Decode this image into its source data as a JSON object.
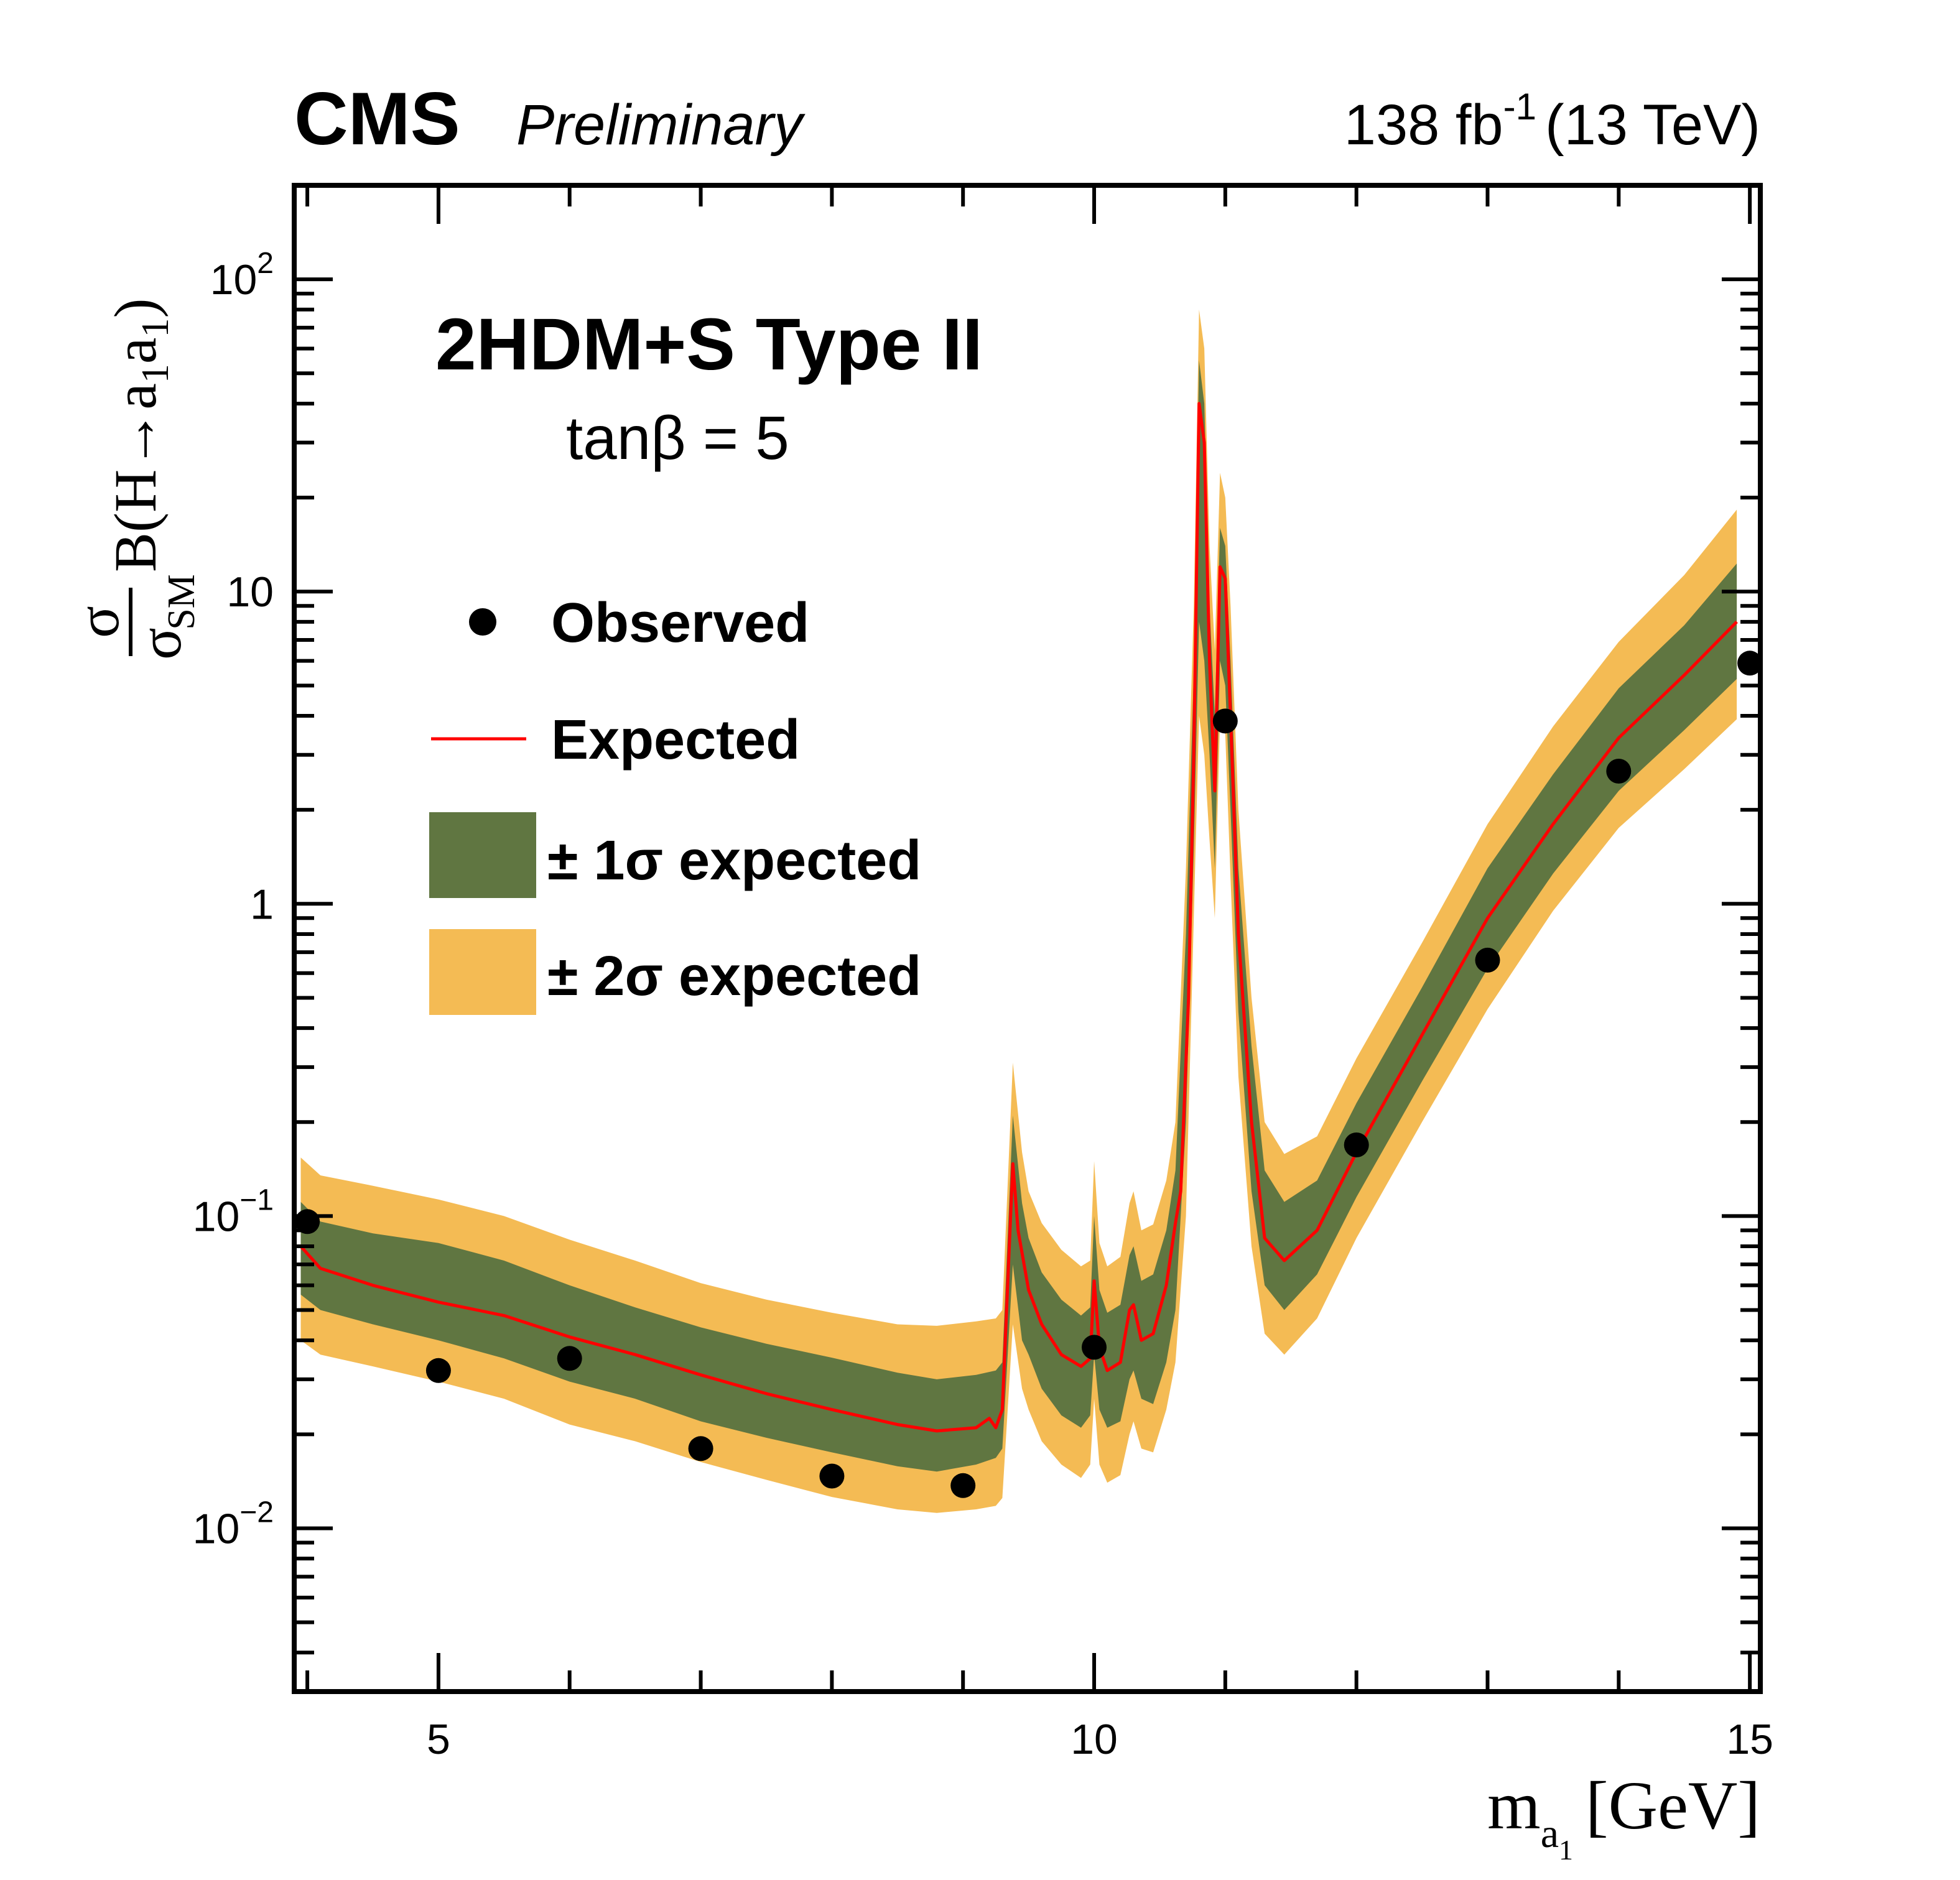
{
  "header": {
    "experiment": "CMS",
    "status": "Preliminary",
    "luminosity": "138 fb",
    "luminosity_exponent": "-1",
    "energy": "(13 TeV)"
  },
  "annotation": {
    "model": "2HDM+S Type II",
    "parameter": "tanβ = 5"
  },
  "legend": {
    "observed": "Observed",
    "expected": "Expected",
    "one_sigma": "± 1σ expected",
    "two_sigma": "± 2σ expected"
  },
  "colors": {
    "one_sigma_band": "#607641",
    "two_sigma_band": "#F4BB54",
    "expected_line": "#FF0000",
    "observed_marker": "#000000"
  },
  "chart_data": {
    "type": "line",
    "title": "",
    "xlabel": "m_a1 [GeV]",
    "ylabel": "σ/σ_SM B(H→a1a1)",
    "x_scale": "linear",
    "y_scale": "log",
    "xlim": [
      3.9,
      15.08
    ],
    "ylim": [
      0.003,
      200
    ],
    "x_ticks": [
      5,
      10,
      15
    ],
    "x_tick_labels": [
      "5",
      "10",
      "15"
    ],
    "y_ticks": [
      0.01,
      0.1,
      1,
      10,
      100
    ],
    "y_tick_labels": [
      {
        "base": "10",
        "exp": "−2"
      },
      {
        "base": "10",
        "exp": "−1"
      },
      {
        "base": "1",
        "exp": ""
      },
      {
        "base": "10",
        "exp": ""
      },
      {
        "base": "10",
        "exp": "2"
      }
    ],
    "legend_position": "top-left",
    "series": [
      {
        "name": "Observed",
        "kind": "markers",
        "x": [
          4.0,
          5.0,
          6.0,
          7.0,
          8.0,
          9.0,
          10.0,
          11.0,
          12.0,
          13.0,
          14.0,
          15.0
        ],
        "y": [
          0.096,
          0.032,
          0.035,
          0.018,
          0.0147,
          0.0137,
          0.038,
          3.85,
          0.169,
          0.66,
          2.66,
          5.9
        ]
      },
      {
        "name": "Expected",
        "kind": "line",
        "x": [
          3.95,
          4.1,
          4.5,
          5.0,
          5.5,
          6.0,
          6.5,
          7.0,
          7.5,
          8.0,
          8.5,
          8.8,
          9.1,
          9.2,
          9.25,
          9.3,
          9.34,
          9.38,
          9.42,
          9.5,
          9.6,
          9.75,
          9.9,
          9.97,
          10.0,
          10.04,
          10.1,
          10.2,
          10.27,
          10.3,
          10.36,
          10.45,
          10.55,
          10.62,
          10.66,
          10.72,
          10.76,
          10.8,
          10.84,
          10.88,
          10.92,
          10.96,
          11.0,
          11.04,
          11.1,
          11.2,
          11.3,
          11.45,
          11.7,
          12.0,
          12.5,
          13.0,
          13.5,
          14.0,
          14.5,
          14.9
        ],
        "y": [
          0.08,
          0.068,
          0.06,
          0.053,
          0.048,
          0.041,
          0.036,
          0.031,
          0.027,
          0.024,
          0.0215,
          0.0205,
          0.021,
          0.0225,
          0.021,
          0.024,
          0.06,
          0.147,
          0.09,
          0.058,
          0.045,
          0.036,
          0.033,
          0.035,
          0.062,
          0.038,
          0.032,
          0.034,
          0.05,
          0.052,
          0.04,
          0.042,
          0.06,
          0.095,
          0.12,
          0.5,
          3.0,
          40,
          30,
          6,
          2.3,
          12,
          11,
          4,
          0.8,
          0.2,
          0.085,
          0.072,
          0.09,
          0.16,
          0.38,
          0.9,
          1.8,
          3.4,
          5.4,
          8.0
        ]
      },
      {
        "name": "± 1σ expected",
        "kind": "band",
        "x": [
          3.95,
          4.1,
          4.5,
          5.0,
          5.5,
          6.0,
          6.5,
          7.0,
          7.5,
          8.0,
          8.5,
          8.8,
          9.1,
          9.25,
          9.3,
          9.38,
          9.45,
          9.5,
          9.6,
          9.75,
          9.9,
          9.97,
          10.0,
          10.04,
          10.1,
          10.2,
          10.27,
          10.3,
          10.36,
          10.45,
          10.55,
          10.62,
          10.7,
          10.76,
          10.8,
          10.84,
          10.88,
          10.92,
          10.96,
          11.0,
          11.04,
          11.1,
          11.2,
          11.3,
          11.45,
          11.7,
          12.0,
          12.5,
          13.0,
          13.5,
          14.0,
          14.5,
          14.9
        ],
        "lo": [
          0.056,
          0.05,
          0.045,
          0.04,
          0.035,
          0.0295,
          0.026,
          0.022,
          0.0195,
          0.0175,
          0.0158,
          0.0152,
          0.016,
          0.0168,
          0.018,
          0.07,
          0.04,
          0.036,
          0.028,
          0.023,
          0.021,
          0.023,
          0.036,
          0.024,
          0.021,
          0.022,
          0.03,
          0.032,
          0.026,
          0.025,
          0.034,
          0.05,
          0.2,
          1.5,
          8,
          6,
          3.0,
          1.3,
          6,
          5,
          2,
          0.45,
          0.12,
          0.06,
          0.05,
          0.065,
          0.115,
          0.27,
          0.62,
          1.25,
          2.3,
          3.6,
          5.25
        ],
        "hi": [
          0.111,
          0.096,
          0.088,
          0.082,
          0.072,
          0.06,
          0.051,
          0.044,
          0.039,
          0.0352,
          0.0315,
          0.03,
          0.031,
          0.032,
          0.034,
          0.21,
          0.11,
          0.085,
          0.066,
          0.054,
          0.048,
          0.051,
          0.1,
          0.058,
          0.049,
          0.052,
          0.075,
          0.08,
          0.062,
          0.065,
          0.09,
          0.14,
          0.8,
          5.5,
          55,
          40,
          9,
          4.0,
          16,
          14,
          6,
          1.3,
          0.35,
          0.14,
          0.111,
          0.13,
          0.23,
          0.54,
          1.3,
          2.6,
          4.9,
          7.8,
          12.3
        ]
      },
      {
        "name": "± 2σ expected",
        "kind": "band",
        "x": [
          3.95,
          4.1,
          4.5,
          5.0,
          5.5,
          6.0,
          6.5,
          7.0,
          7.5,
          8.0,
          8.5,
          8.8,
          9.1,
          9.25,
          9.3,
          9.38,
          9.45,
          9.5,
          9.6,
          9.75,
          9.9,
          9.97,
          10.0,
          10.04,
          10.1,
          10.2,
          10.27,
          10.3,
          10.36,
          10.45,
          10.55,
          10.62,
          10.7,
          10.76,
          10.8,
          10.84,
          10.88,
          10.92,
          10.96,
          11.0,
          11.04,
          11.1,
          11.2,
          11.3,
          11.45,
          11.7,
          12.0,
          12.5,
          13.0,
          13.5,
          14.0,
          14.5,
          14.9
        ],
        "lo": [
          0.04,
          0.036,
          0.033,
          0.0295,
          0.026,
          0.0215,
          0.019,
          0.0163,
          0.0143,
          0.0126,
          0.0115,
          0.0112,
          0.0115,
          0.0118,
          0.0125,
          0.045,
          0.028,
          0.024,
          0.019,
          0.016,
          0.0145,
          0.016,
          0.026,
          0.016,
          0.014,
          0.0148,
          0.02,
          0.022,
          0.018,
          0.0175,
          0.024,
          0.034,
          0.1,
          0.9,
          4,
          3,
          1.6,
          0.9,
          4,
          3.5,
          1.2,
          0.28,
          0.08,
          0.042,
          0.036,
          0.047,
          0.085,
          0.2,
          0.46,
          0.95,
          1.75,
          2.7,
          3.9
        ],
        "hi": [
          0.154,
          0.135,
          0.125,
          0.113,
          0.1,
          0.084,
          0.072,
          0.061,
          0.054,
          0.049,
          0.045,
          0.0445,
          0.046,
          0.047,
          0.05,
          0.31,
          0.16,
          0.12,
          0.095,
          0.078,
          0.069,
          0.072,
          0.15,
          0.082,
          0.069,
          0.074,
          0.11,
          0.12,
          0.09,
          0.094,
          0.13,
          0.2,
          1.3,
          9,
          80,
          60,
          14,
          6.5,
          24,
          20,
          9,
          2.0,
          0.5,
          0.2,
          0.158,
          0.18,
          0.32,
          0.75,
          1.8,
          3.7,
          6.9,
          11.3,
          18.3
        ]
      }
    ]
  }
}
